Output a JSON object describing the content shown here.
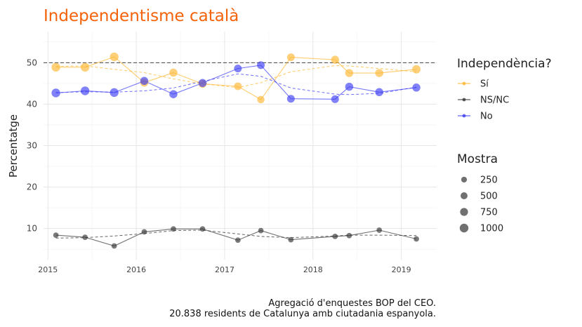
{
  "chart_data": {
    "type": "line",
    "title": "Independentisme català",
    "ylabel": "Percentatge",
    "xlabel": "",
    "xlim": [
      2014.95,
      2019.4
    ],
    "ylim": [
      2.5,
      57.5
    ],
    "x_ticks": [
      2015,
      2016,
      2017,
      2018,
      2019
    ],
    "y_ticks": [
      10,
      20,
      30,
      40,
      50
    ],
    "reference_line": 50,
    "grid": true,
    "legend_position": "right",
    "legend_color_title": "Independència?",
    "legend_size_title": "Mostra",
    "size_legend": [
      250,
      500,
      750,
      1000
    ],
    "caption": [
      "Agregació d'enquestes BOP del CEO.",
      "20.838 residents de Catalunya amb ciutadania espanyola."
    ],
    "series": [
      {
        "name": "Sí",
        "color": "#FFB732",
        "x": [
          2015.09,
          2015.42,
          2015.75,
          2016.09,
          2016.42,
          2016.75,
          2017.15,
          2017.41,
          2017.75,
          2018.25,
          2018.41,
          2018.75,
          2019.17
        ],
        "values": [
          48.9,
          48.9,
          51.4,
          45.2,
          47.6,
          44.9,
          44.3,
          41.1,
          51.3,
          50.7,
          47.5,
          47.5,
          48.4
        ],
        "sizes": [
          1000,
          1000,
          1000,
          800,
          800,
          800,
          700,
          600,
          700,
          800,
          800,
          800,
          900
        ],
        "trend": [
          49.1,
          49.2,
          48.4,
          47.6,
          46.1,
          44.9,
          44.0,
          45.2,
          47.8,
          49.3,
          49.2,
          48.6,
          47.8
        ]
      },
      {
        "name": "NS/NC",
        "color": "#333333",
        "x": [
          2015.09,
          2015.42,
          2015.75,
          2016.09,
          2016.42,
          2016.75,
          2017.15,
          2017.41,
          2017.75,
          2018.25,
          2018.41,
          2018.75,
          2019.17
        ],
        "values": [
          8.4,
          7.9,
          5.8,
          9.2,
          9.9,
          9.9,
          7.2,
          9.5,
          7.3,
          8.1,
          8.3,
          9.6,
          7.5
        ],
        "sizes": [
          200,
          200,
          200,
          200,
          200,
          200,
          200,
          200,
          200,
          200,
          200,
          200,
          200
        ],
        "trend": [
          7.7,
          7.8,
          8.2,
          8.8,
          9.5,
          9.6,
          8.7,
          8.1,
          7.8,
          8.2,
          8.4,
          8.4,
          8.3
        ]
      },
      {
        "name": "No",
        "color": "#3D3DF5",
        "x": [
          2015.09,
          2015.42,
          2015.75,
          2016.09,
          2016.42,
          2016.75,
          2017.15,
          2017.41,
          2017.75,
          2018.25,
          2018.41,
          2018.75,
          2019.17
        ],
        "values": [
          42.7,
          43.2,
          42.8,
          45.6,
          42.4,
          45.1,
          48.6,
          49.4,
          41.3,
          41.2,
          44.2,
          42.9,
          44.0
        ],
        "sizes": [
          1000,
          1000,
          1000,
          800,
          800,
          800,
          700,
          700,
          700,
          700,
          800,
          800,
          800
        ],
        "trend": [
          42.8,
          43.0,
          42.9,
          43.2,
          43.9,
          45.5,
          47.3,
          46.7,
          43.9,
          42.4,
          42.3,
          42.6,
          44.1
        ]
      }
    ]
  }
}
